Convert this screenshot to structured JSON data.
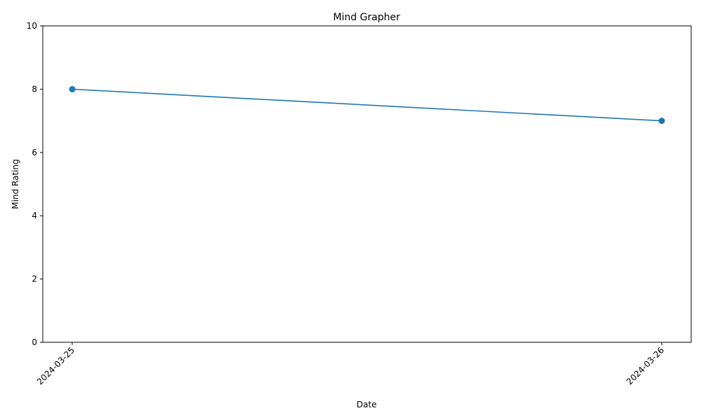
{
  "chart_data": {
    "type": "line",
    "title": "Mind Grapher",
    "xlabel": "Date",
    "ylabel": "Mind Rating",
    "x": [
      "2024-03-25",
      "2024-03-26"
    ],
    "series": [
      {
        "values": [
          8,
          7
        ],
        "color": "#1f77b4",
        "marker": "circle"
      }
    ],
    "ylim": [
      0,
      10
    ],
    "yticks": [
      0,
      2,
      4,
      6,
      8,
      10
    ],
    "xtick_rotation_deg": 45,
    "grid": false,
    "legend": "none"
  }
}
